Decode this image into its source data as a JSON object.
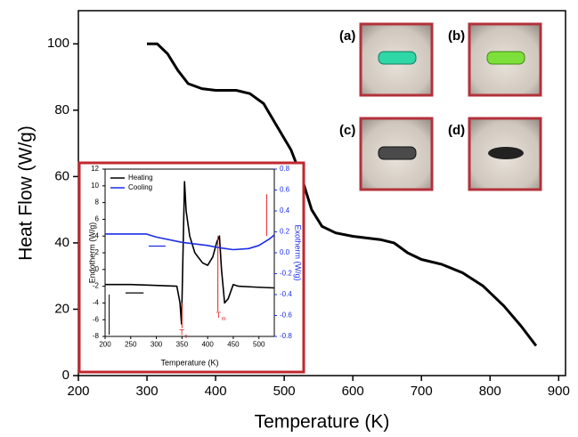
{
  "chart_data": [
    {
      "type": "line",
      "x_label": "Temperature (K)",
      "y_label": "Heat Flow (W/g)",
      "x": [
        300,
        315,
        330,
        345,
        360,
        380,
        400,
        430,
        450,
        470,
        490,
        510,
        525,
        540,
        555,
        575,
        600,
        640,
        660,
        680,
        700,
        730,
        760,
        790,
        820,
        845,
        867
      ],
      "values": [
        100,
        100,
        97,
        92,
        88,
        86.5,
        86,
        86,
        85,
        82,
        75,
        68,
        60,
        50,
        45,
        43,
        42,
        41,
        40,
        37,
        35,
        33.5,
        31,
        27,
        21,
        15,
        9
      ],
      "color": "#000000",
      "xlim": [
        200,
        910
      ],
      "ylim": [
        0,
        110
      ],
      "xticks": [
        200,
        300,
        400,
        500,
        600,
        700,
        800,
        900
      ],
      "yticks": [
        0,
        20,
        40,
        60,
        80,
        100
      ]
    },
    {
      "type": "line",
      "x_label": "Temperature (K)",
      "y_label": "Endotherm (W/g)",
      "y2_label": "Exotherm (W/g)",
      "series": [
        {
          "name": "Heating",
          "color": "#000000",
          "x": [
            200,
            250,
            300,
            340,
            346,
            349,
            352,
            355,
            358,
            365,
            375,
            390,
            400,
            410,
            418,
            423,
            427,
            433,
            440,
            450,
            460,
            490,
            530
          ],
          "values": [
            -1.8,
            -1.8,
            -1.9,
            -2,
            -4,
            -6.5,
            2,
            10.5,
            7,
            4,
            2,
            0.8,
            0.5,
            1.5,
            3.3,
            4,
            0,
            -4,
            -3.5,
            -1.8,
            -2,
            -2.1,
            -2.2
          ]
        },
        {
          "name": "Cooling",
          "color": "#1a2ee6",
          "axis": "y2",
          "x": [
            200,
            240,
            280,
            300,
            350,
            400,
            420,
            450,
            480,
            500,
            520,
            530
          ],
          "values": [
            0.18,
            0.18,
            0.18,
            0.15,
            0.1,
            0.07,
            0.05,
            0.03,
            0.04,
            0.07,
            0.13,
            0.17
          ]
        }
      ],
      "xlim": [
        200,
        530
      ],
      "ylim": [
        -8,
        12
      ],
      "y2lim": [
        -0.8,
        0.8
      ],
      "xticks": [
        200,
        250,
        300,
        350,
        400,
        450,
        500
      ],
      "yticks": [
        -8,
        -6,
        -4,
        -2,
        0,
        2,
        4,
        6,
        8,
        10,
        12
      ],
      "y2ticks": [
        -0.8,
        -0.6,
        -0.4,
        -0.2,
        {
          "value": 0,
          "label": "0.0"
        },
        0.2,
        0.4,
        0.6,
        0.8
      ],
      "annotations": [
        "T",
        "c",
        "T",
        "m"
      ],
      "legend": "upper left"
    }
  ],
  "photo_labels": [
    "(a)",
    "(b)",
    "(c)",
    "(d)"
  ]
}
